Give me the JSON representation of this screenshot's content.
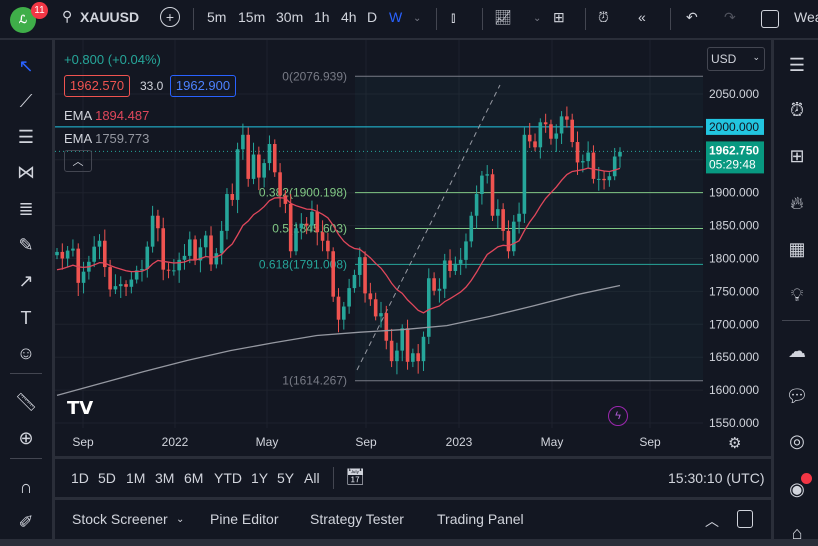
{
  "header": {
    "notifications": "11",
    "symbol": "XAUUSD",
    "timeframes": [
      "5m",
      "15m",
      "30m",
      "1h",
      "4h",
      "D",
      "W"
    ],
    "active_timeframe": "W",
    "truncated_label": "Wea"
  },
  "legend": {
    "change": "+0.800 (+0.04%)",
    "sell_price": "1962.570",
    "spread": "33.0",
    "buy_price": "1962.900",
    "ema1_label": "EMA",
    "ema1_value": "1894.487",
    "ema2_label": "EMA",
    "ema2_value": "1759.773"
  },
  "price_axis": {
    "currency": "USD",
    "ticks": [
      "2050.000",
      "2000.000",
      "1900.000",
      "1850.000",
      "1800.000",
      "1750.000",
      "1700.000",
      "1650.000",
      "1600.000",
      "1550.000"
    ],
    "marker_2000": "2000.000",
    "last_price": "1962.750",
    "countdown": "05:29:48"
  },
  "time_axis": {
    "ticks": [
      "Sep",
      "2022",
      "May",
      "Sep",
      "2023",
      "May",
      "Sep"
    ]
  },
  "fib": {
    "l0": "0(2076.939)",
    "l382": "0.382(1900.198)",
    "l5": "0.5(1845.603)",
    "l618": "0.618(1791.008)",
    "l1": "1(1614.267)"
  },
  "range_bar": {
    "ranges": [
      "1D",
      "5D",
      "1M",
      "3M",
      "6M",
      "YTD",
      "1Y",
      "5Y",
      "All"
    ],
    "clock": "15:30:10 (UTC)"
  },
  "bottom_panel": {
    "tabs": [
      "Stock Screener",
      "Pine Editor",
      "Strategy Tester",
      "Trading Panel"
    ]
  },
  "colors": {
    "up": "#26a69a",
    "down": "#ef5350",
    "ema1": "#e0475b",
    "ema2": "#9598a1",
    "cyan": "#22c5e0",
    "fib": "#81c784"
  },
  "chart_data": {
    "type": "candlestick",
    "ylim": [
      1530,
      2110
    ],
    "closes": [
      1810,
      1800,
      1812,
      1815,
      1763,
      1780,
      1795,
      1818,
      1827,
      1787,
      1753,
      1758,
      1761,
      1757,
      1768,
      1782,
      1784,
      1818,
      1865,
      1846,
      1783,
      1782,
      1782,
      1798,
      1804,
      1829,
      1797,
      1817,
      1835,
      1791,
      1808,
      1842,
      1898,
      1889,
      1966,
      1988,
      1921,
      1958,
      1923,
      1945,
      1974,
      1931,
      1896,
      1883,
      1811,
      1846,
      1853,
      1850,
      1871,
      1840,
      1827,
      1811,
      1742,
      1707,
      1727,
      1755,
      1775,
      1802,
      1747,
      1738,
      1712,
      1717,
      1675,
      1644,
      1660,
      1694,
      1643,
      1656,
      1644,
      1681,
      1770,
      1751,
      1754,
      1797,
      1781,
      1792,
      1798,
      1826,
      1865,
      1898,
      1926,
      1928,
      1865,
      1875,
      1842,
      1811,
      1856,
      1868,
      1988,
      1978,
      1969,
      2007,
      2004,
      1982,
      1990,
      2016,
      2011,
      1977,
      1946,
      1948,
      1961,
      1921,
      1921,
      1919,
      1925,
      1955,
      1962
    ],
    "ema_long": [
      1592,
      1610,
      1628,
      1645,
      1660,
      1672,
      1683,
      1688,
      1692,
      1698,
      1712,
      1728,
      1745,
      1759
    ]
  }
}
